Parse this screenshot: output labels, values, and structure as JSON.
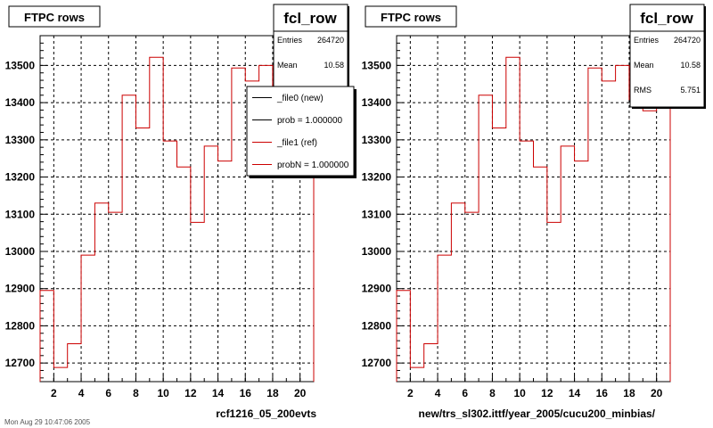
{
  "colors": {
    "line_new": "#000000",
    "line_ref": "#cc0000",
    "frame": "#000000",
    "background": "#ffffff"
  },
  "footer_text": "Mon Aug 29 10:47:06 2005",
  "chart_data": [
    {
      "type": "histogram",
      "title": "FTPC rows",
      "xlabel": "rcf1216_05_200evts",
      "xlim": [
        1,
        21
      ],
      "ylim": [
        12650,
        13580
      ],
      "x_ticks": [
        "2",
        "4",
        "6",
        "8",
        "10",
        "12",
        "14",
        "16",
        "18",
        "20"
      ],
      "y_ticks": [
        "12700",
        "12800",
        "12900",
        "13000",
        "13100",
        "13200",
        "13300",
        "13400",
        "13500"
      ],
      "grid": true,
      "bin_edges": [
        1,
        2,
        3,
        4,
        5,
        6,
        7,
        8,
        9,
        10,
        11,
        12,
        13,
        14,
        15,
        16,
        17,
        18,
        19,
        20,
        21
      ],
      "series": [
        {
          "name": "_file1 (ref)",
          "values": [
            12895,
            12688,
            12752,
            12990,
            13130,
            13105,
            13420,
            13332,
            13522,
            13297,
            13227,
            13078,
            13283,
            13243,
            13493,
            13458,
            13500,
            13408,
            13378,
            13472
          ]
        }
      ],
      "stats": {
        "name": "fcl_row",
        "rows": [
          {
            "label": "Entries",
            "value": "264720"
          },
          {
            "label": "Mean",
            "value": "10.58"
          }
        ]
      },
      "legend": [
        {
          "label": "_file0 (new)",
          "color": "#000000"
        },
        {
          "label": "prob = 1.000000",
          "color": "#000000"
        },
        {
          "label": "_file1 (ref)",
          "color": "#cc0000"
        },
        {
          "label": "probN = 1.000000",
          "color": "#cc0000"
        }
      ]
    },
    {
      "type": "histogram",
      "title": "FTPC rows",
      "xlabel": "new/trs_sl302.ittf/year_2005/cucu200_minbias/",
      "xlim": [
        1,
        21
      ],
      "ylim": [
        12650,
        13580
      ],
      "x_ticks": [
        "2",
        "4",
        "6",
        "8",
        "10",
        "12",
        "14",
        "16",
        "18",
        "20"
      ],
      "y_ticks": [
        "12700",
        "12800",
        "12900",
        "13000",
        "13100",
        "13200",
        "13300",
        "13400",
        "13500"
      ],
      "grid": true,
      "bin_edges": [
        1,
        2,
        3,
        4,
        5,
        6,
        7,
        8,
        9,
        10,
        11,
        12,
        13,
        14,
        15,
        16,
        17,
        18,
        19,
        20,
        21
      ],
      "series": [
        {
          "name": "",
          "values": [
            12895,
            12688,
            12752,
            12990,
            13130,
            13105,
            13420,
            13332,
            13522,
            13297,
            13227,
            13078,
            13283,
            13243,
            13493,
            13458,
            13500,
            13408,
            13378,
            13472
          ]
        }
      ],
      "stats": {
        "name": "fcl_row",
        "rows": [
          {
            "label": "Entries",
            "value": "264720"
          },
          {
            "label": "Mean",
            "value": "10.58"
          },
          {
            "label": "RMS",
            "value": "5.751"
          }
        ]
      },
      "legend": []
    }
  ]
}
